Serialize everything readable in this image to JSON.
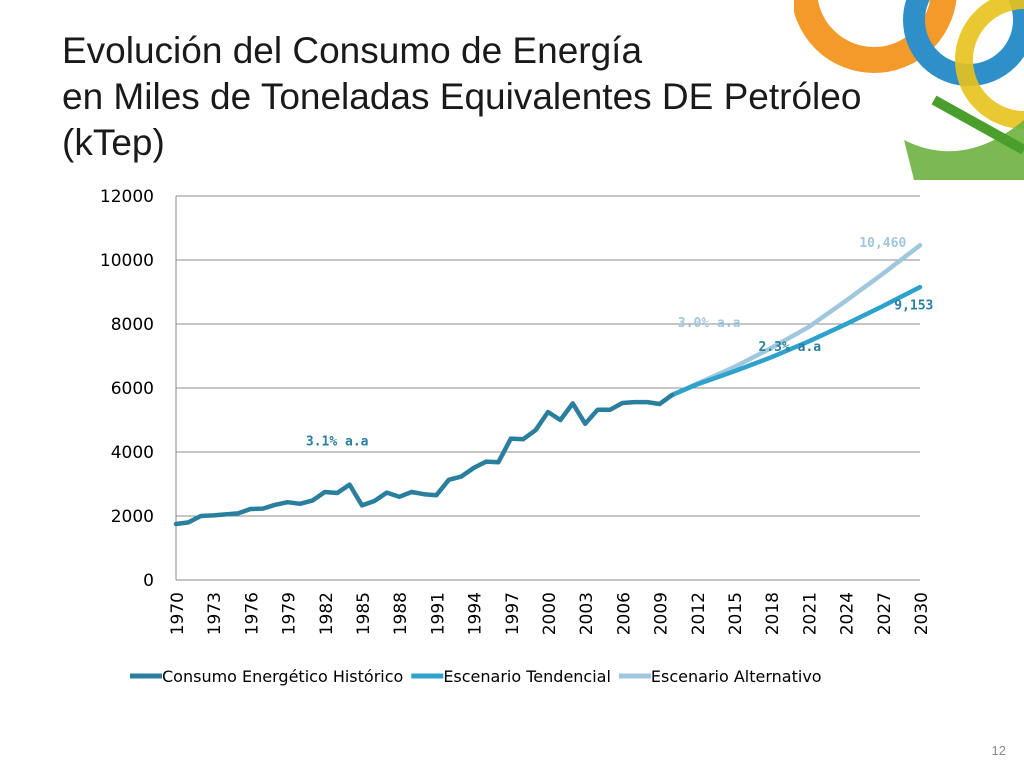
{
  "slide": {
    "title_line1": "Evolución del Consumo de Energía",
    "title_line2": "en Miles de Toneladas Equivalentes DE Petróleo",
    "title_line3": "(kTep)",
    "page_number": "12"
  },
  "chart_data": {
    "type": "line",
    "title": "Evolución del Consumo de Energía en Miles de Toneladas Equivalentes DE Petróleo (kTep)",
    "xlabel": "",
    "ylabel": "",
    "xlim": [
      1970,
      2030
    ],
    "ylim": [
      0,
      12000
    ],
    "y_ticks": [
      0,
      2000,
      4000,
      6000,
      8000,
      10000,
      12000
    ],
    "x_ticks": [
      1970,
      1973,
      1976,
      1979,
      1982,
      1985,
      1988,
      1991,
      1994,
      1997,
      2000,
      2003,
      2006,
      2009,
      2012,
      2015,
      2018,
      2021,
      2024,
      2027,
      2030
    ],
    "grid": true,
    "legend_position": "bottom",
    "series": [
      {
        "name": "Consumo Energético Histórico",
        "color": "#2a7f9e",
        "x": [
          1970,
          1971,
          1972,
          1973,
          1974,
          1975,
          1976,
          1977,
          1978,
          1979,
          1980,
          1981,
          1982,
          1983,
          1984,
          1985,
          1986,
          1987,
          1988,
          1989,
          1990,
          1991,
          1992,
          1993,
          1994,
          1995,
          1996,
          1997,
          1998,
          1999,
          2000,
          2001,
          2002,
          2003,
          2004,
          2005,
          2006,
          2007,
          2008,
          2009,
          2010
        ],
        "values": [
          1750,
          1800,
          2000,
          2020,
          2050,
          2080,
          2220,
          2230,
          2350,
          2430,
          2380,
          2480,
          2750,
          2720,
          2980,
          2330,
          2470,
          2730,
          2600,
          2750,
          2680,
          2650,
          3130,
          3230,
          3500,
          3700,
          3680,
          4420,
          4400,
          4680,
          5250,
          5000,
          5520,
          4880,
          5320,
          5320,
          5530,
          5560,
          5560,
          5500,
          5780
        ]
      },
      {
        "name": "Escenario Tendencial",
        "color": "#2ea2cc",
        "x": [
          2010,
          2012,
          2015,
          2018,
          2021,
          2024,
          2027,
          2030
        ],
        "values": [
          5780,
          6110,
          6520,
          6960,
          7450,
          7990,
          8560,
          9153
        ]
      },
      {
        "name": "Escenario Alternativo",
        "color": "#9fc7de",
        "x": [
          2010,
          2012,
          2015,
          2018,
          2021,
          2024,
          2027,
          2030
        ],
        "values": [
          5780,
          6130,
          6650,
          7250,
          7900,
          8720,
          9570,
          10460
        ]
      }
    ],
    "annotations": [
      {
        "text": "3.1% a.a",
        "x": 1983,
        "y": 4200,
        "color": "#2a7f9e"
      },
      {
        "text": "3.0% a.a",
        "x": 2013,
        "y": 7900,
        "color": "#9fc7de"
      },
      {
        "text": "2.3% a.a",
        "x": 2019.5,
        "y": 7150,
        "color": "#2a7f9e"
      },
      {
        "text": "10,460",
        "x": 2027,
        "y": 10400,
        "color": "#9fc7de"
      },
      {
        "text": "9,153",
        "x": 2029.5,
        "y": 8450,
        "color": "#2a7f9e"
      }
    ]
  }
}
